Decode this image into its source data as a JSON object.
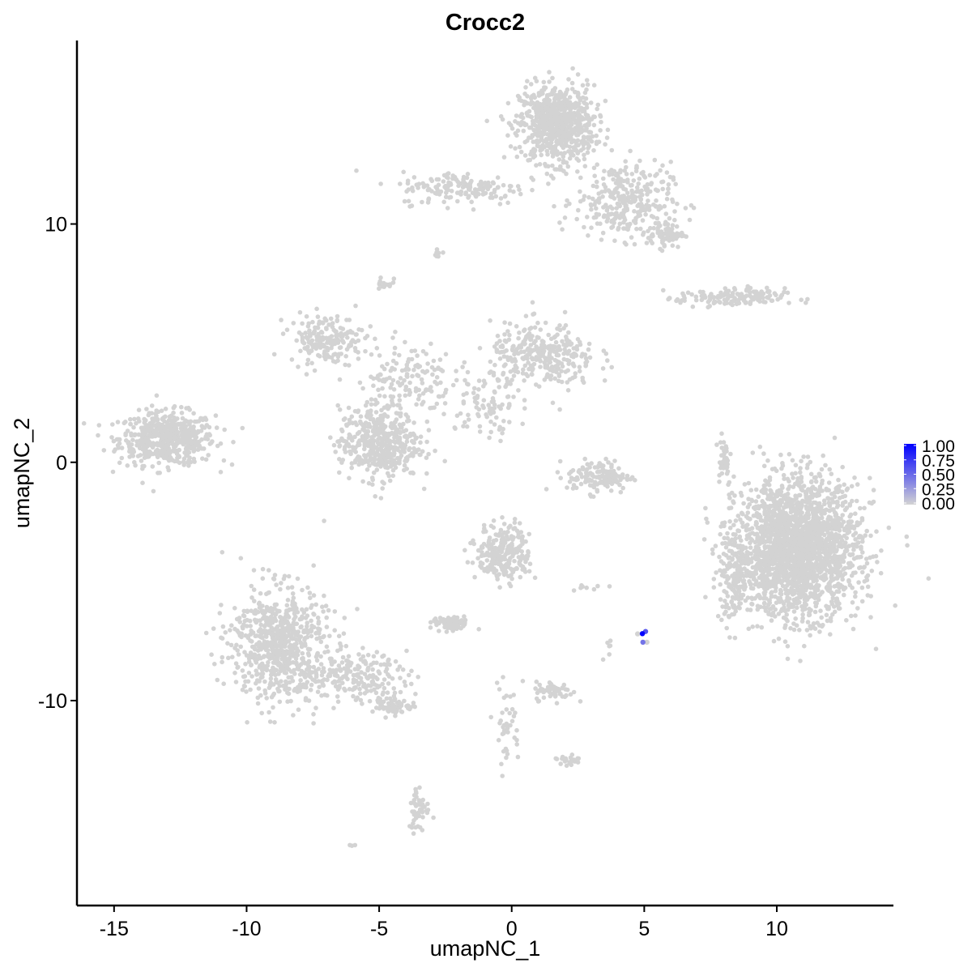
{
  "chart_data": {
    "type": "scatter",
    "title": "Crocc2",
    "xlabel": "umapNC_1",
    "ylabel": "umapNC_2",
    "xlim": [
      -16.4,
      14.4
    ],
    "ylim": [
      -18.6,
      17.7
    ],
    "xticks": [
      -15,
      -10,
      -5,
      0,
      5,
      10
    ],
    "yticks": [
      -10,
      0,
      10
    ],
    "xtick_labels": [
      "-15",
      "-10",
      "-5",
      "0",
      "5",
      "10"
    ],
    "ytick_labels": [
      "-10",
      "0",
      "10"
    ],
    "grid": false,
    "legend": {
      "placement": "right",
      "type": "colorbar",
      "low_color": "#D3D3D3",
      "high_color": "#0000FF",
      "range": [
        0,
        1
      ],
      "labels": [
        "1.00",
        "0.75",
        "0.50",
        "0.25",
        "0.00"
      ]
    },
    "background_point_color": "#D3D3D3",
    "clusters": [
      {
        "cx": -13.0,
        "cy": 1.0,
        "sx": 0.9,
        "sy": 0.55,
        "n": 550,
        "value": 0
      },
      {
        "cx": 1.7,
        "cy": 14.2,
        "sx": 0.7,
        "sy": 0.8,
        "n": 750,
        "value": 0
      },
      {
        "cx": 4.2,
        "cy": 11.0,
        "sx": 0.9,
        "sy": 0.8,
        "n": 300,
        "value": 0
      },
      {
        "cx": 5.8,
        "cy": 9.6,
        "sx": 0.35,
        "sy": 0.3,
        "n": 80,
        "value": 0
      },
      {
        "cx": -1.8,
        "cy": 11.5,
        "sx": 1.2,
        "sy": 0.35,
        "n": 160,
        "value": 0
      },
      {
        "cx": -7.0,
        "cy": 5.2,
        "sx": 0.7,
        "sy": 0.5,
        "n": 180,
        "value": 0
      },
      {
        "cx": -5.0,
        "cy": 0.8,
        "sx": 0.75,
        "sy": 0.75,
        "n": 450,
        "value": 0
      },
      {
        "cx": -4.0,
        "cy": 3.5,
        "sx": 0.9,
        "sy": 0.8,
        "n": 150,
        "value": 0
      },
      {
        "cx": 1.2,
        "cy": 4.4,
        "sx": 1.0,
        "sy": 0.7,
        "n": 320,
        "value": 0
      },
      {
        "cx": -1.0,
        "cy": 2.5,
        "sx": 0.8,
        "sy": 0.7,
        "n": 80,
        "value": 0
      },
      {
        "cx": 10.8,
        "cy": -3.6,
        "sx": 1.15,
        "sy": 1.4,
        "n": 2200,
        "value": 0
      },
      {
        "cx": 8.4,
        "cy": -4.8,
        "sx": 0.35,
        "sy": 0.9,
        "n": 150,
        "value": 0
      },
      {
        "cx": -8.8,
        "cy": -7.6,
        "sx": 0.9,
        "sy": 1.2,
        "n": 700,
        "value": 0
      },
      {
        "cx": -6.0,
        "cy": -9.0,
        "sx": 1.0,
        "sy": 0.5,
        "n": 200,
        "value": 0
      },
      {
        "cx": -4.4,
        "cy": -10.2,
        "sx": 0.4,
        "sy": 0.2,
        "n": 60,
        "value": 0
      },
      {
        "cx": -0.3,
        "cy": -3.8,
        "sx": 0.5,
        "sy": 0.6,
        "n": 250,
        "value": 0
      },
      {
        "cx": -2.3,
        "cy": -6.8,
        "sx": 0.35,
        "sy": 0.15,
        "n": 80,
        "value": 0
      },
      {
        "cx": 8.3,
        "cy": 6.9,
        "sx": 1.0,
        "sy": 0.2,
        "n": 150,
        "value": 0
      },
      {
        "cx": 3.3,
        "cy": -0.6,
        "sx": 0.6,
        "sy": 0.35,
        "n": 130,
        "value": 0
      },
      {
        "cx": 8.0,
        "cy": 0.2,
        "sx": 0.15,
        "sy": 0.6,
        "n": 40,
        "value": 0
      },
      {
        "cx": 1.6,
        "cy": -9.6,
        "sx": 0.35,
        "sy": 0.2,
        "n": 60,
        "value": 0
      },
      {
        "cx": -3.5,
        "cy": -14.5,
        "sx": 0.2,
        "sy": 0.5,
        "n": 50,
        "value": 0
      },
      {
        "cx": -4.8,
        "cy": 7.5,
        "sx": 0.15,
        "sy": 0.2,
        "n": 15,
        "value": 0
      },
      {
        "cx": -0.2,
        "cy": -11.0,
        "sx": 0.25,
        "sy": 0.8,
        "n": 40,
        "value": 0
      },
      {
        "cx": 2.1,
        "cy": -12.5,
        "sx": 0.3,
        "sy": 0.15,
        "n": 25,
        "value": 0
      },
      {
        "cx": -2.8,
        "cy": 8.8,
        "sx": 0.1,
        "sy": 0.1,
        "n": 8,
        "value": 0
      },
      {
        "cx": 3.6,
        "cy": -7.8,
        "sx": 0.1,
        "sy": 0.2,
        "n": 6,
        "value": 0
      },
      {
        "cx": 2.9,
        "cy": -5.2,
        "sx": 0.3,
        "sy": 0.1,
        "n": 8,
        "value": 0
      },
      {
        "cx": -6.0,
        "cy": -16.1,
        "sx": 0.05,
        "sy": 0.05,
        "n": 3,
        "value": 0
      }
    ],
    "points": [
      {
        "x": 5.1,
        "y": -7.55,
        "value": 0
      },
      {
        "x": 4.75,
        "y": -7.2,
        "value": 0
      },
      {
        "x": 4.95,
        "y": -7.55,
        "value": 0.45
      },
      {
        "x": 5.05,
        "y": -7.1,
        "value": 0.6
      },
      {
        "x": 4.93,
        "y": -7.19,
        "value": 1.0
      }
    ]
  }
}
